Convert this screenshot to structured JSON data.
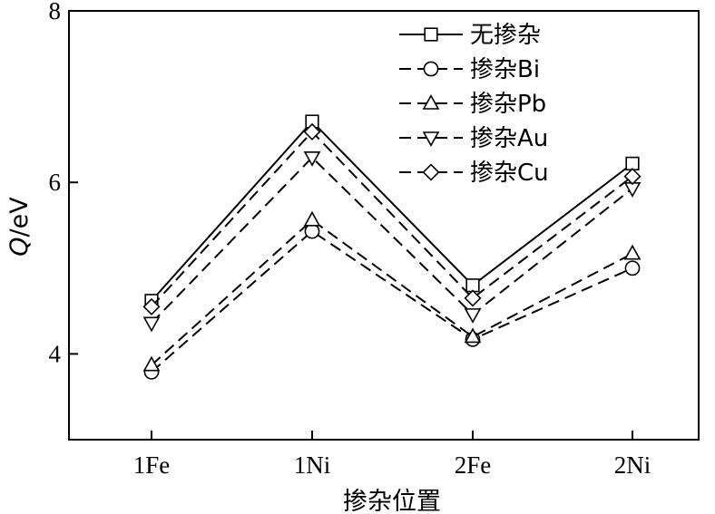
{
  "chart_data": {
    "type": "line",
    "categories": [
      "1Fe",
      "1Ni",
      "2Fe",
      "2Ni"
    ],
    "xlabel": "掺杂位置",
    "ylabel": {
      "italic": "Q",
      "rest": "/eV"
    },
    "ylim": [
      3.0,
      8.0
    ],
    "yticks": [
      4,
      6,
      8
    ],
    "yticklabels": [
      "4",
      "6",
      "8"
    ],
    "grid": false,
    "legend_position": "top-right",
    "series": [
      {
        "name": "无掺杂",
        "marker": "square",
        "line": "solid",
        "values": [
          4.62,
          6.71,
          4.8,
          6.22
        ]
      },
      {
        "name": "掺杂Bi",
        "marker": "circle",
        "line": "dashed",
        "values": [
          3.79,
          5.43,
          4.17,
          5.0
        ]
      },
      {
        "name": "掺杂Pb",
        "marker": "triangle-up",
        "line": "dashed",
        "values": [
          3.87,
          5.56,
          4.2,
          5.17
        ]
      },
      {
        "name": "掺杂Au",
        "marker": "triangle-down",
        "line": "dashed",
        "values": [
          4.36,
          6.29,
          4.46,
          5.93
        ]
      },
      {
        "name": "掺杂Cu",
        "marker": "diamond",
        "line": "dashed",
        "values": [
          4.55,
          6.59,
          4.65,
          6.07
        ]
      }
    ],
    "colors": {
      "line": "#000000",
      "marker_fill": "#ffffff"
    }
  }
}
